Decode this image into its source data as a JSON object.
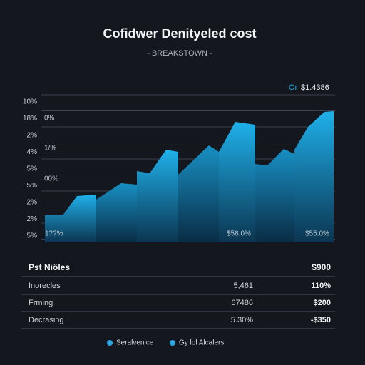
{
  "header": {
    "title": "Cofidwer Denityeled cost",
    "subtitle": "- BREAKSTOWN -",
    "badge_prefix": "Or",
    "badge_value": "$1.4386"
  },
  "axis_labels": [
    "10%",
    "18%",
    "2%",
    "4%",
    "5%",
    "5%",
    "2%",
    "2%",
    "5%"
  ],
  "plot_labels": [
    "0%",
    "1/%",
    "00%"
  ],
  "bottom_labels": [
    "1??%",
    "$58.0%",
    "$55.0%"
  ],
  "table": {
    "header": [
      "Pst Niöles",
      "$900"
    ],
    "rows": [
      [
        "Inorecles",
        "5,461",
        "110%"
      ],
      [
        "Frming",
        "67486",
        "$200"
      ],
      [
        "Decrasing",
        "5.30%",
        "-$350"
      ]
    ]
  },
  "legend": [
    "Seralvenice",
    "Gy lol Alcalers"
  ]
}
